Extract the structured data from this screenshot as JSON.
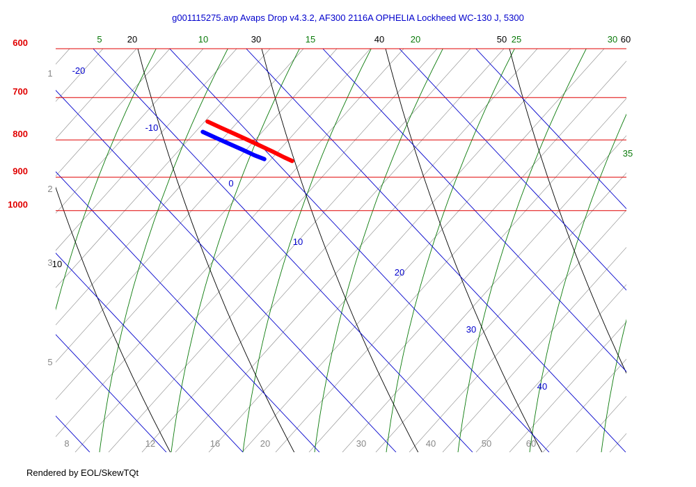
{
  "title": "g001115275.avp  Avaps Drop v4.3.2, AF300 2116A OPHELIA Lockheed WC-130 J, 5300",
  "footer": "Rendered by EOL/SkewTQt",
  "colors": {
    "isobar": "#e00000",
    "isotherm": "#0000cc",
    "dry_adiabat": "#000000",
    "moist_adiabat": "#0a7a0a",
    "mixing_ratio": "#888888",
    "temperature_trace": "#ff0000",
    "dewpoint_trace": "#0000ff"
  },
  "chart_data": {
    "type": "skew-t",
    "pressure_range_mb": [
      600,
      1050
    ],
    "isobars_mb": [
      600,
      700,
      800,
      900,
      1000
    ],
    "isotherm_labels_c": [
      "-20",
      "-10",
      "0",
      "10",
      "20",
      "30",
      "40"
    ],
    "dry_adiabat_labels": [
      "10",
      "20",
      "30",
      "40",
      "50",
      "60"
    ],
    "moist_adiabat_labels": [
      "5",
      "10",
      "15",
      "20",
      "25",
      "30",
      "35"
    ],
    "mixing_ratio_labels": [
      "8",
      "12",
      "16",
      "20",
      "30",
      "40",
      "50",
      "60"
    ],
    "height_labels_km": [
      "1",
      "2",
      "3",
      "5"
    ],
    "series": [
      {
        "name": "Temperature",
        "color": "#ff0000",
        "points": [
          {
            "p": 855,
            "t": 22.2
          },
          {
            "p": 845,
            "t": 21.6
          },
          {
            "p": 830,
            "t": 20.8
          },
          {
            "p": 815,
            "t": 19.9
          },
          {
            "p": 800,
            "t": 19.0
          },
          {
            "p": 785,
            "t": 18.0
          },
          {
            "p": 770,
            "t": 17.0
          },
          {
            "p": 755,
            "t": 16.0
          }
        ]
      },
      {
        "name": "Dewpoint",
        "color": "#0000ff",
        "points": [
          {
            "p": 850,
            "t": 18.8
          },
          {
            "p": 840,
            "t": 18.0
          },
          {
            "p": 825,
            "t": 17.1
          },
          {
            "p": 810,
            "t": 16.1
          },
          {
            "p": 795,
            "t": 15.1
          },
          {
            "p": 780,
            "t": 14.1
          }
        ]
      }
    ]
  }
}
